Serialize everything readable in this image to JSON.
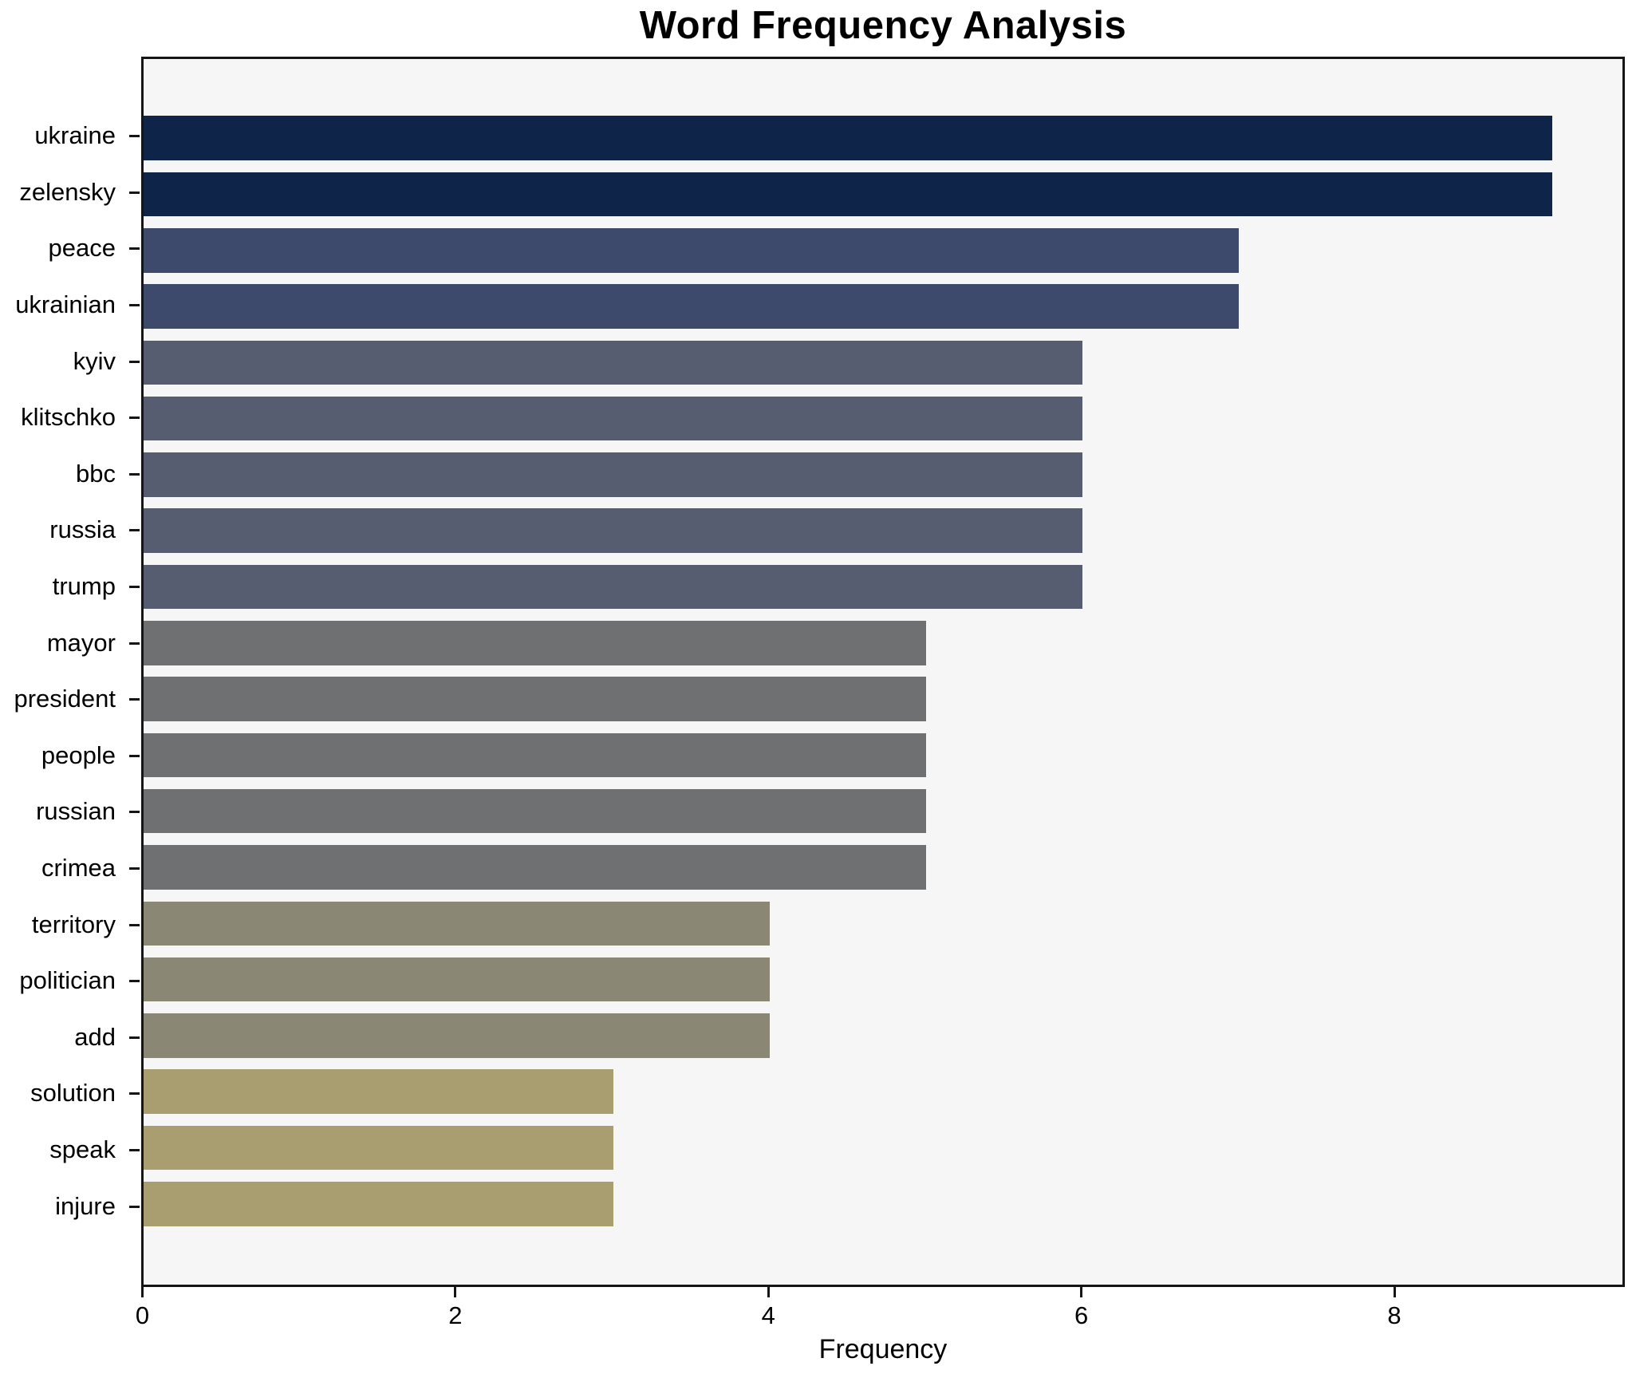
{
  "chart_data": {
    "type": "bar",
    "orientation": "horizontal",
    "title": "Word Frequency Analysis",
    "xlabel": "Frequency",
    "ylabel": "",
    "xlim": [
      0,
      9.45
    ],
    "xticks": [
      0,
      2,
      4,
      6,
      8
    ],
    "grid": false,
    "legend": false,
    "colormap_note": "cividis-like scale, darkest navy = highest frequency, khaki = lowest",
    "categories": [
      "ukraine",
      "zelensky",
      "peace",
      "ukrainian",
      "kyiv",
      "klitschko",
      "bbc",
      "russia",
      "trump",
      "mayor",
      "president",
      "people",
      "russian",
      "crimea",
      "territory",
      "politician",
      "add",
      "solution",
      "speak",
      "injure"
    ],
    "values": [
      9,
      9,
      7,
      7,
      6,
      6,
      6,
      6,
      6,
      5,
      5,
      5,
      5,
      5,
      4,
      4,
      4,
      3,
      3,
      3
    ],
    "bar_colors": [
      "#0e2449",
      "#0e2449",
      "#3d4a6b",
      "#3d4a6b",
      "#565d70",
      "#565d70",
      "#565d70",
      "#565d70",
      "#565d70",
      "#6f7072",
      "#6f7072",
      "#6f7072",
      "#6f7072",
      "#6f7072",
      "#8b8775",
      "#8b8775",
      "#8b8775",
      "#a89e70",
      "#a89e70",
      "#a89e70"
    ]
  },
  "style": {
    "figure_bg": "#ffffff",
    "plot_bg": "#f6f6f7",
    "spine_color": "#151515",
    "text_color": "#000000"
  }
}
